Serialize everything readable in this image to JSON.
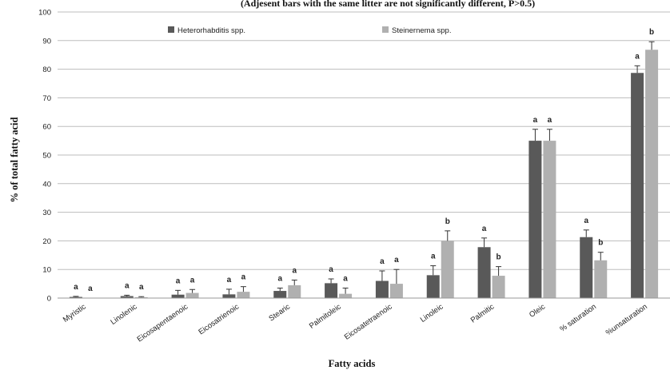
{
  "chart_data": {
    "type": "bar",
    "title": "",
    "subtitle": "(Adjesent bars with the same litter are not significantly different, P>0.5)",
    "xlabel": "Fatty acids",
    "ylabel": "% of total fatty acid",
    "ylim": [
      0,
      100
    ],
    "yticks": [
      0,
      10,
      20,
      30,
      40,
      50,
      60,
      70,
      80,
      90,
      100
    ],
    "grid": true,
    "legend_position": "top-left",
    "categories": [
      "Myristic",
      "Linolenic",
      "Eicosapentaenoic",
      "Eicosatrienoic",
      "Stearic",
      "Palmitoleic",
      "Eicosatetraenoic",
      "Linoleic",
      "Palmitic",
      "Oleic",
      "% saturation",
      "%unsaturation"
    ],
    "series": [
      {
        "name": "Heterorhabditis spp.",
        "color": "#595959",
        "values": [
          0.4,
          0.7,
          1.2,
          1.3,
          2.5,
          5.2,
          6.0,
          8.0,
          17.8,
          55.0,
          21.3,
          78.7
        ],
        "errors": [
          0.2,
          0.3,
          1.5,
          1.8,
          1.0,
          1.5,
          3.5,
          3.3,
          3.2,
          4.0,
          2.5,
          2.5
        ],
        "letters": [
          "a",
          "a",
          "a",
          "a",
          "a",
          "a",
          "a",
          "a",
          "a",
          "a",
          "a",
          "a"
        ]
      },
      {
        "name": "Steinernema spp.",
        "color": "#b0b0b0",
        "values": [
          0.0,
          0.3,
          1.8,
          2.2,
          4.5,
          1.5,
          5.0,
          20.0,
          7.8,
          55.0,
          13.2,
          86.8
        ],
        "errors": [
          0.0,
          0.2,
          1.2,
          1.8,
          1.8,
          2.0,
          5.0,
          3.5,
          3.2,
          4.0,
          2.8,
          2.8
        ],
        "letters": [
          "a",
          "a",
          "a",
          "a",
          "a",
          "a",
          "a",
          "b",
          "b",
          "a",
          "b",
          "b"
        ]
      }
    ]
  }
}
